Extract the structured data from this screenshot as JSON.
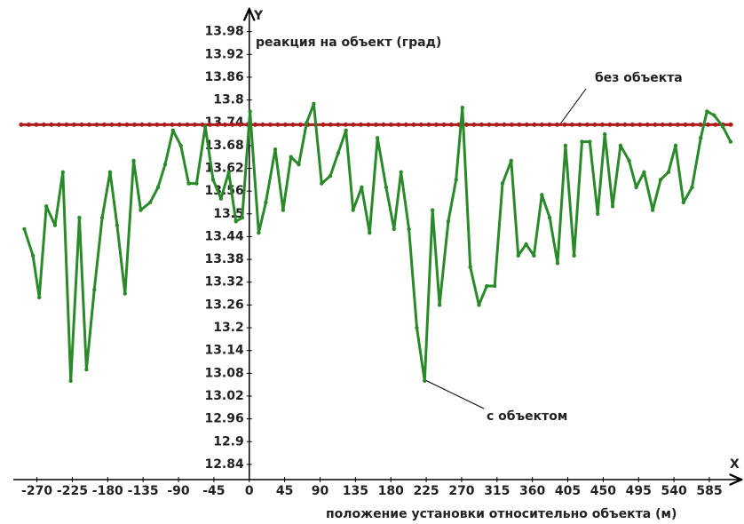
{
  "chart_data": {
    "type": "line",
    "x_axis_name": "X",
    "y_axis_name": "Y",
    "y_label": "реакция на объект (град)",
    "x_label": "положение установки относительно объекта (м)",
    "xlim": [
      -300,
      620
    ],
    "ylim": [
      12.8,
      14.04
    ],
    "xticks": [
      -270,
      -225,
      -180,
      -135,
      -90,
      -45,
      0,
      45,
      90,
      135,
      180,
      225,
      270,
      315,
      360,
      405,
      450,
      495,
      540,
      585
    ],
    "yticks": [
      12.84,
      12.9,
      12.96,
      13.02,
      13.08,
      13.14,
      13.2,
      13.26,
      13.32,
      13.38,
      13.44,
      13.5,
      13.56,
      13.62,
      13.68,
      13.74,
      13.8,
      13.86,
      13.92,
      13.98
    ],
    "grid": false,
    "series": [
      {
        "name": "без объекта",
        "color": "#b01c1c",
        "x": [
          -290,
          615
        ],
        "values": [
          13.735,
          13.735
        ]
      },
      {
        "name": "с объектом",
        "color": "#2a8a2a",
        "x": [
          -286,
          -275,
          -267,
          -258,
          -247,
          -237,
          -227,
          -216,
          -207,
          -197,
          -187,
          -177,
          -168,
          -158,
          -147,
          -138,
          -126,
          -116,
          -107,
          -97,
          -87,
          -77,
          -67,
          -56,
          -46,
          -36,
          -26,
          -17,
          -9,
          1,
          12,
          21,
          33,
          43,
          53,
          63,
          73,
          82,
          92,
          103,
          113,
          123,
          132,
          143,
          153,
          163,
          174,
          184,
          193,
          203,
          213,
          223,
          233,
          242,
          253,
          263,
          271,
          281,
          292,
          302,
          312,
          322,
          333,
          342,
          352,
          362,
          372,
          382,
          392,
          402,
          413,
          423,
          433,
          443,
          452,
          462,
          472,
          483,
          492,
          502,
          513,
          523,
          533,
          542,
          552,
          563,
          574,
          582,
          591,
          602,
          612
        ],
        "values": [
          13.46,
          13.39,
          13.28,
          13.52,
          13.47,
          13.61,
          13.06,
          13.49,
          13.09,
          13.3,
          13.49,
          13.61,
          13.47,
          13.29,
          13.64,
          13.51,
          13.53,
          13.57,
          13.63,
          13.72,
          13.68,
          13.58,
          13.58,
          13.73,
          13.59,
          13.54,
          13.61,
          13.48,
          13.49,
          13.77,
          13.45,
          13.53,
          13.67,
          13.51,
          13.65,
          13.63,
          13.74,
          13.79,
          13.58,
          13.6,
          13.66,
          13.72,
          13.51,
          13.57,
          13.45,
          13.7,
          13.57,
          13.46,
          13.61,
          13.46,
          13.2,
          13.06,
          13.51,
          13.26,
          13.48,
          13.59,
          13.78,
          13.36,
          13.26,
          13.31,
          13.31,
          13.58,
          13.64,
          13.39,
          13.42,
          13.39,
          13.55,
          13.49,
          13.37,
          13.68,
          13.39,
          13.69,
          13.69,
          13.5,
          13.71,
          13.52,
          13.68,
          13.64,
          13.57,
          13.61,
          13.51,
          13.59,
          13.61,
          13.68,
          13.53,
          13.57,
          13.7,
          13.77,
          13.76,
          13.73,
          13.69
        ]
      }
    ]
  }
}
